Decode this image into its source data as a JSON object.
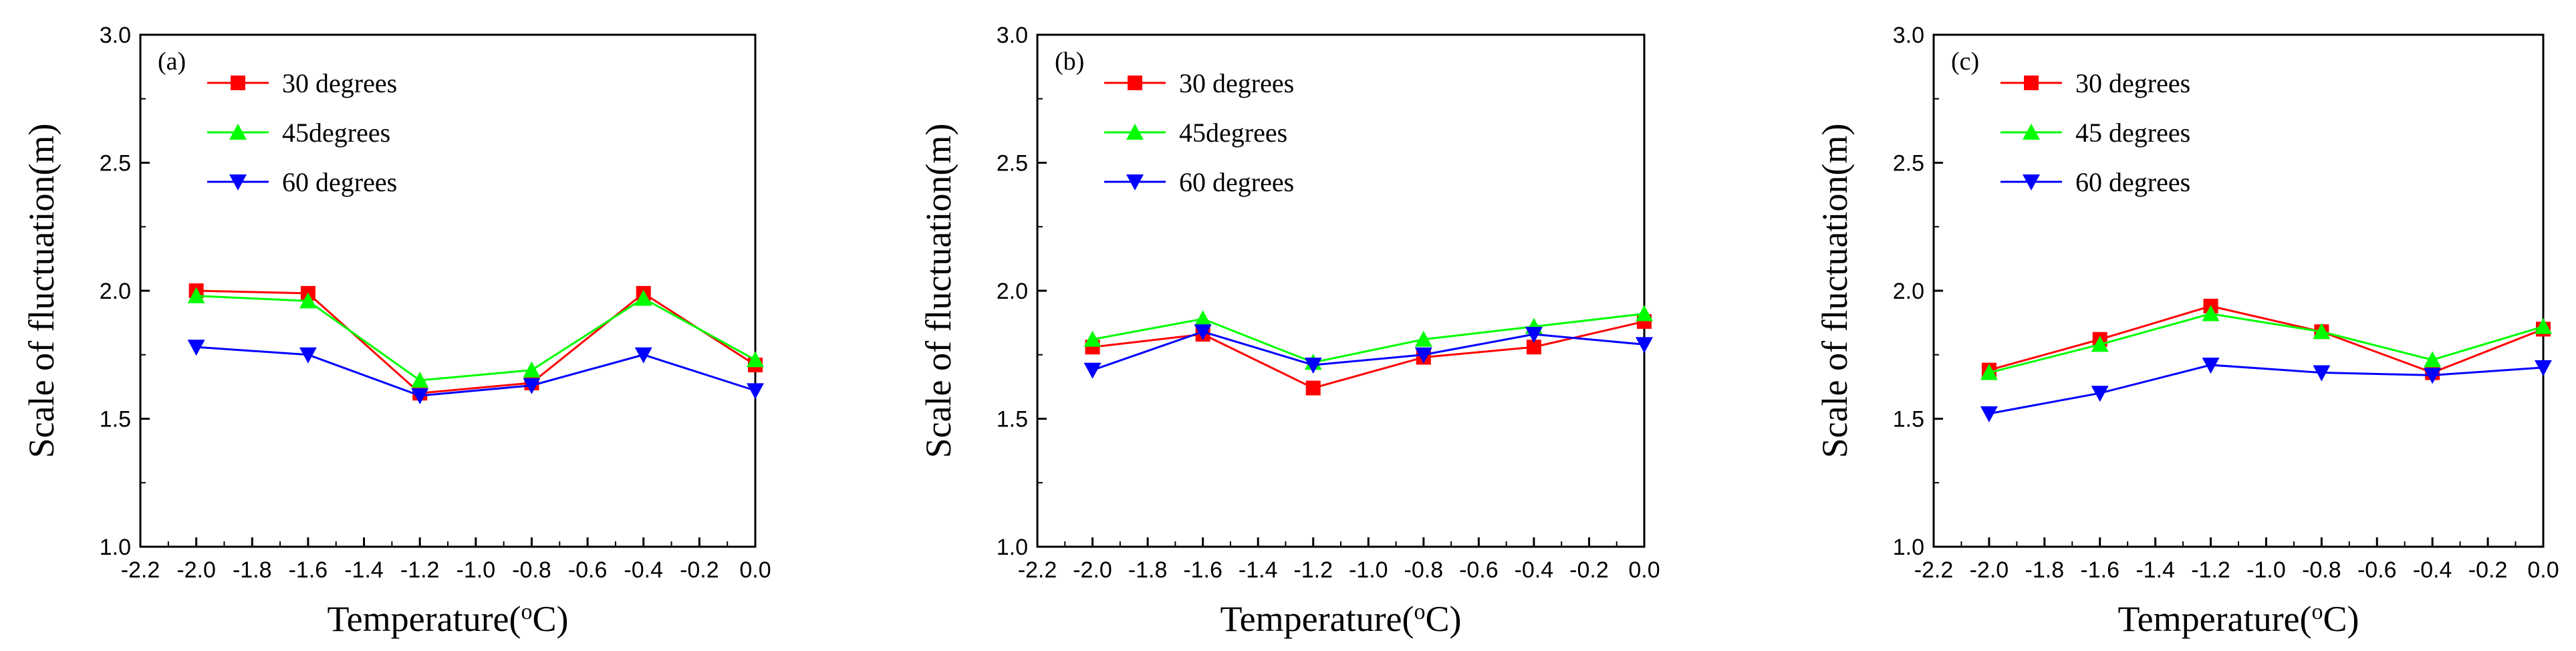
{
  "figure": {
    "colors": {
      "red": "#ff0000",
      "green": "#00ff00",
      "blue": "#0000ff",
      "axis": "#000000"
    }
  },
  "chart_data": [
    {
      "type": "line",
      "panel_label": "(a)",
      "xlabel": "Temperature(",
      "xlabel_super": "o",
      "xlabel_unit": "C)",
      "ylabel": "Scale of fluctuation(m)",
      "xlim": [
        -2.2,
        0.0
      ],
      "ylim": [
        1.0,
        3.0
      ],
      "x_ticks": [
        "-2.2",
        "-2.0",
        "-1.8",
        "-1.6",
        "-1.4",
        "-1.2",
        "-1.0",
        "-0.8",
        "-0.6",
        "-0.4",
        "-0.2",
        "0.0"
      ],
      "y_ticks": [
        "1.0",
        "1.5",
        "2.0",
        "2.5",
        "3.0"
      ],
      "series": [
        {
          "name": "30 degrees",
          "color": "#ff0000",
          "marker": "square",
          "x": [
            -2.0,
            -1.6,
            -1.2,
            -0.8,
            -0.4,
            0.0
          ],
          "y": [
            2.0,
            1.99,
            1.6,
            1.64,
            1.99,
            1.71
          ]
        },
        {
          "name": "45degrees",
          "color": "#00ff00",
          "marker": "triangle-up",
          "x": [
            -2.0,
            -1.6,
            -1.2,
            -0.8,
            -0.4,
            0.0
          ],
          "y": [
            1.98,
            1.96,
            1.65,
            1.69,
            1.97,
            1.73
          ]
        },
        {
          "name": "60 degrees",
          "color": "#0000ff",
          "marker": "triangle-down",
          "x": [
            -2.0,
            -1.6,
            -1.2,
            -0.8,
            -0.4,
            0.0
          ],
          "y": [
            1.78,
            1.75,
            1.59,
            1.63,
            1.75,
            1.61
          ]
        }
      ]
    },
    {
      "type": "line",
      "panel_label": "(b)",
      "xlabel": "Temperature(",
      "xlabel_super": "o",
      "xlabel_unit": "C)",
      "ylabel": "Scale of fluctuation(m)",
      "xlim": [
        -2.2,
        0.0
      ],
      "ylim": [
        1.0,
        3.0
      ],
      "x_ticks": [
        "-2.2",
        "-2.0",
        "-1.8",
        "-1.6",
        "-1.4",
        "-1.2",
        "-1.0",
        "-0.8",
        "-0.6",
        "-0.4",
        "-0.2",
        "0.0"
      ],
      "y_ticks": [
        "1.0",
        "1.5",
        "2.0",
        "2.5",
        "3.0"
      ],
      "series": [
        {
          "name": "30 degrees",
          "color": "#ff0000",
          "marker": "square",
          "x": [
            -2.0,
            -1.6,
            -1.2,
            -0.8,
            -0.4,
            0.0
          ],
          "y": [
            1.78,
            1.83,
            1.62,
            1.74,
            1.78,
            1.88
          ]
        },
        {
          "name": "45degrees",
          "color": "#00ff00",
          "marker": "triangle-up",
          "x": [
            -2.0,
            -1.6,
            -1.2,
            -0.8,
            -0.4,
            0.0
          ],
          "y": [
            1.81,
            1.89,
            1.72,
            1.81,
            1.86,
            1.91
          ]
        },
        {
          "name": "60 degrees",
          "color": "#0000ff",
          "marker": "triangle-down",
          "x": [
            -2.0,
            -1.6,
            -1.2,
            -0.8,
            -0.4,
            0.0
          ],
          "y": [
            1.69,
            1.84,
            1.71,
            1.75,
            1.83,
            1.79
          ]
        }
      ]
    },
    {
      "type": "line",
      "panel_label": "(c)",
      "xlabel": "Temperature(",
      "xlabel_super": "o",
      "xlabel_unit": "C)",
      "ylabel": "Scale of fluctuation(m)",
      "xlim": [
        -2.2,
        0.0
      ],
      "ylim": [
        1.0,
        3.0
      ],
      "x_ticks": [
        "-2.2",
        "-2.0",
        "-1.8",
        "-1.6",
        "-1.4",
        "-1.2",
        "-1.0",
        "-0.8",
        "-0.6",
        "-0.4",
        "-0.2",
        "0.0"
      ],
      "y_ticks": [
        "1.0",
        "1.5",
        "2.0",
        "2.5",
        "3.0"
      ],
      "series": [
        {
          "name": "30 degrees",
          "color": "#ff0000",
          "marker": "square",
          "x": [
            -2.0,
            -1.6,
            -1.2,
            -0.8,
            -0.4,
            0.0
          ],
          "y": [
            1.69,
            1.81,
            1.94,
            1.84,
            1.68,
            1.85
          ]
        },
        {
          "name": "45 degrees",
          "color": "#00ff00",
          "marker": "triangle-up",
          "x": [
            -2.0,
            -1.6,
            -1.2,
            -0.8,
            -0.4,
            0.0
          ],
          "y": [
            1.68,
            1.79,
            1.91,
            1.84,
            1.73,
            1.86
          ]
        },
        {
          "name": "60 degrees",
          "color": "#0000ff",
          "marker": "triangle-down",
          "x": [
            -2.0,
            -1.6,
            -1.2,
            -0.8,
            -0.4,
            0.0
          ],
          "y": [
            1.52,
            1.6,
            1.71,
            1.68,
            1.67,
            1.7
          ]
        }
      ]
    }
  ]
}
